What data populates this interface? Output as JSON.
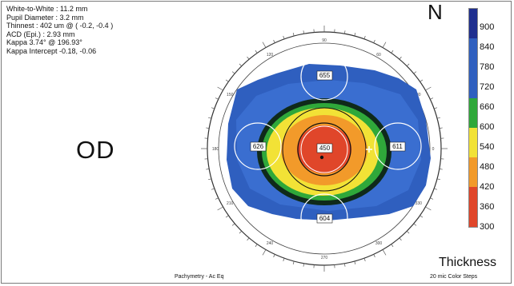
{
  "info": {
    "white_to_white": "White-to-White : 11.2 mm",
    "pupil_diameter": "Pupil Diameter : 3.2 mm",
    "thinnest": "Thinnest : 402 um @ ( -0.2, -0.4 )",
    "acd": "ACD (Epi.) : 2.93 mm",
    "kappa": "Kappa  3.74° @ 196.93°",
    "kappa_intercept": "Kappa Intercept  -0.18, -0.06"
  },
  "eye_label": "OD",
  "orientation_label": "N",
  "zones": {
    "superior": "655",
    "temporal": "626",
    "central": "450",
    "nasal": "611",
    "inferior": "604"
  },
  "scale": {
    "labels": [
      "900",
      "840",
      "780",
      "720",
      "660",
      "600",
      "540",
      "480",
      "420",
      "360",
      "300"
    ],
    "colors": {
      "dark_blue": "#1f2f8f",
      "blue": "#2f5fbf",
      "green": "#2fa83a",
      "yellow": "#f2e236",
      "orange": "#f29a2a",
      "red": "#e0462a"
    }
  },
  "map_type": "Thickness",
  "step_label": "20 mic Color Steps",
  "footer_label": "Pachymetry - Ac Eq",
  "axis_degrees": [
    "0",
    "30",
    "60",
    "90",
    "120",
    "150",
    "180",
    "210",
    "240",
    "270",
    "300",
    "330"
  ]
}
